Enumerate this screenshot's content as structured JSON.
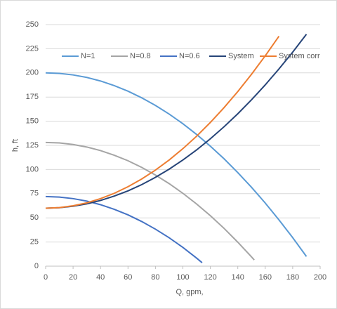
{
  "chart_data": {
    "type": "line",
    "xlabel": "Q, gpm,",
    "ylabel": "h, ft",
    "xlim": [
      0,
      200
    ],
    "xticks": [
      0,
      20,
      40,
      60,
      80,
      100,
      120,
      140,
      160,
      180,
      200
    ],
    "ylim": [
      0,
      250
    ],
    "yticks": [
      0,
      25,
      50,
      75,
      100,
      125,
      150,
      175,
      200,
      225,
      250
    ],
    "grid": true,
    "legend": "top",
    "series": [
      {
        "name": "N=1",
        "color": "#5b9bd5",
        "x": [
          0,
          10,
          20,
          30,
          40,
          50,
          60,
          70,
          80,
          90,
          100,
          110,
          120,
          130,
          140,
          150,
          160,
          170,
          180,
          190
        ],
        "values": [
          200,
          199.5,
          197.9,
          195.3,
          191.6,
          186.8,
          181.1,
          174.2,
          166.3,
          157.4,
          147.4,
          136.3,
          124.2,
          111.1,
          96.8,
          81.6,
          65.3,
          47.9,
          29.5,
          10
        ]
      },
      {
        "name": "N=0.8",
        "color": "#a5a5a5",
        "x": [
          0,
          10,
          20,
          30,
          40,
          50,
          60,
          70,
          80,
          90,
          100,
          110,
          120,
          130,
          140,
          150,
          152
        ],
        "values": [
          128,
          127.5,
          125.9,
          123.3,
          119.6,
          114.8,
          109.1,
          102.2,
          94.3,
          85.4,
          75.4,
          64.3,
          52.2,
          39.1,
          24.8,
          9.6,
          6.4
        ]
      },
      {
        "name": "N=0.6",
        "color": "#4472c4",
        "x": [
          0,
          10,
          20,
          30,
          40,
          50,
          60,
          70,
          80,
          90,
          100,
          110,
          114
        ],
        "values": [
          72,
          71.5,
          69.9,
          67.3,
          63.6,
          58.8,
          53.1,
          46.2,
          38.3,
          29.4,
          19.4,
          8.3,
          3.6
        ]
      },
      {
        "name": "System",
        "color": "#264478",
        "x": [
          0,
          10,
          20,
          30,
          40,
          50,
          60,
          70,
          80,
          90,
          100,
          110,
          120,
          130,
          140,
          150,
          160,
          170,
          180,
          190
        ],
        "values": [
          60,
          60.5,
          62,
          64.5,
          68,
          72.5,
          77.9,
          84.4,
          91.9,
          100.4,
          109.9,
          120.3,
          131.8,
          144.3,
          157.7,
          172.2,
          187.6,
          204.1,
          221.5,
          240
        ]
      },
      {
        "name": "System corr",
        "color": "#ed7d31",
        "x": [
          0,
          10,
          20,
          30,
          40,
          50,
          60,
          70,
          80,
          90,
          100,
          110,
          120,
          130,
          140,
          150,
          160,
          170
        ],
        "values": [
          60,
          60.6,
          62.5,
          65.5,
          69.9,
          75.4,
          82.2,
          90.2,
          99.4,
          109.9,
          121.6,
          134.5,
          148.7,
          164.1,
          180.7,
          198.6,
          217.7,
          238
        ]
      }
    ]
  }
}
